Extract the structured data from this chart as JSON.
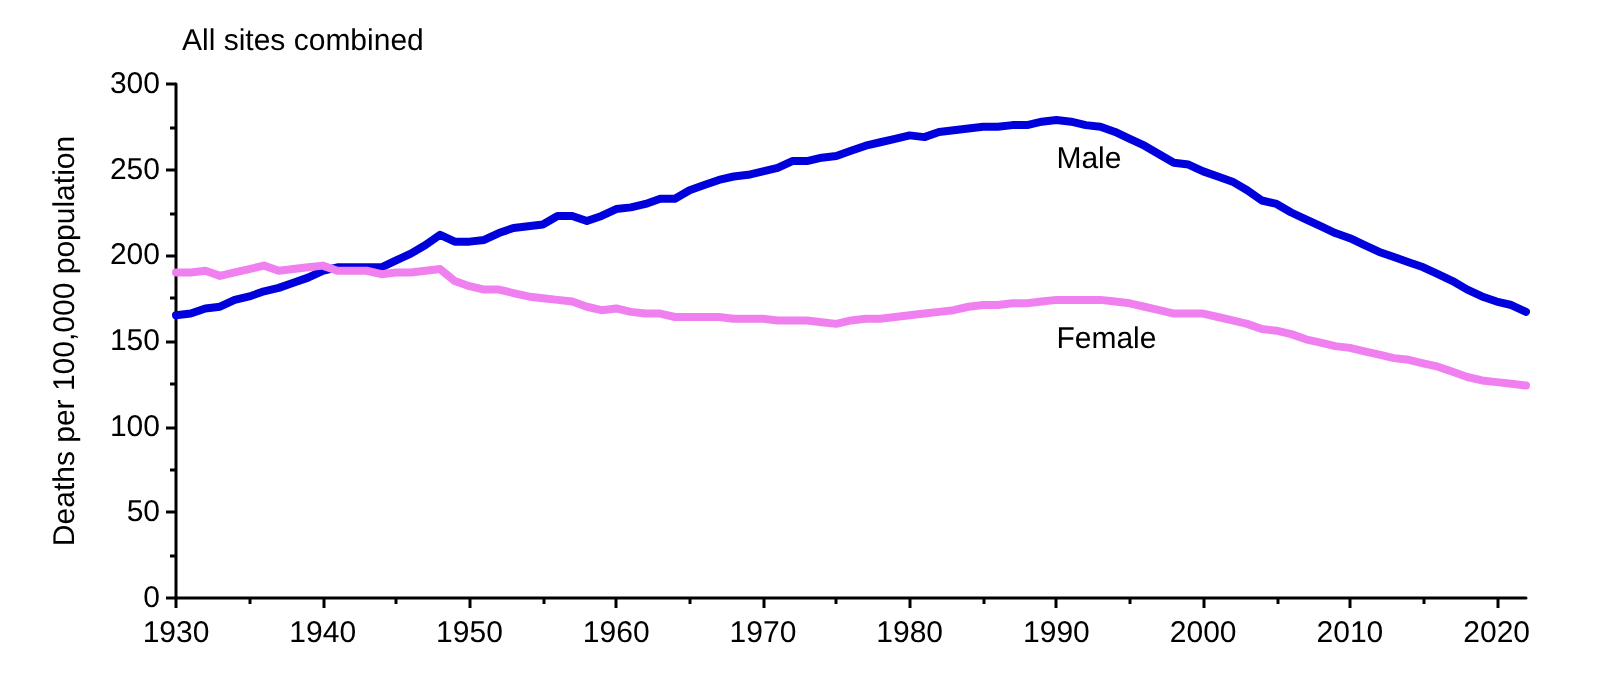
{
  "chart_data": {
    "type": "line",
    "title": "All sites combined",
    "ylabel": "Deaths per 100,000 population",
    "x": [
      1930,
      1931,
      1932,
      1933,
      1934,
      1935,
      1936,
      1937,
      1938,
      1939,
      1940,
      1941,
      1942,
      1943,
      1944,
      1945,
      1946,
      1947,
      1948,
      1949,
      1950,
      1951,
      1952,
      1953,
      1954,
      1955,
      1956,
      1957,
      1958,
      1959,
      1960,
      1961,
      1962,
      1963,
      1964,
      1965,
      1966,
      1967,
      1968,
      1969,
      1970,
      1971,
      1972,
      1973,
      1974,
      1975,
      1976,
      1977,
      1978,
      1979,
      1980,
      1981,
      1982,
      1983,
      1984,
      1985,
      1986,
      1987,
      1988,
      1989,
      1990,
      1991,
      1992,
      1993,
      1994,
      1995,
      1996,
      1997,
      1998,
      1999,
      2000,
      2001,
      2002,
      2003,
      2004,
      2005,
      2006,
      2007,
      2008,
      2009,
      2010,
      2011,
      2012,
      2013,
      2014,
      2015,
      2016,
      2017,
      2018,
      2019,
      2020,
      2021,
      2022
    ],
    "series": [
      {
        "name": "Male",
        "color": "#0000dd",
        "values": [
          165,
          166,
          169,
          170,
          174,
          176,
          179,
          181,
          184,
          187,
          191,
          193,
          193,
          193,
          193,
          197,
          201,
          206,
          212,
          208,
          208,
          209,
          213,
          216,
          217,
          218,
          223,
          223,
          220,
          223,
          227,
          228,
          230,
          233,
          233,
          238,
          241,
          244,
          246,
          247,
          249,
          251,
          255,
          255,
          257,
          258,
          261,
          264,
          266,
          268,
          270,
          269,
          272,
          273,
          274,
          275,
          275,
          276,
          276,
          278,
          279,
          278,
          276,
          275,
          272,
          268,
          264,
          259,
          254,
          253,
          249,
          246,
          243,
          238,
          232,
          230,
          225,
          221,
          217,
          213,
          210,
          206,
          202,
          199,
          196,
          193,
          189,
          185,
          180,
          176,
          173,
          171,
          167
        ]
      },
      {
        "name": "Female",
        "color": "#f080f0",
        "values": [
          190,
          190,
          191,
          188,
          190,
          192,
          194,
          191,
          192,
          193,
          194,
          191,
          191,
          191,
          189,
          190,
          190,
          191,
          192,
          185,
          182,
          180,
          180,
          178,
          176,
          175,
          174,
          173,
          170,
          168,
          169,
          167,
          166,
          166,
          164,
          164,
          164,
          164,
          163,
          163,
          163,
          162,
          162,
          162,
          161,
          160,
          162,
          163,
          163,
          164,
          165,
          166,
          167,
          168,
          170,
          171,
          171,
          172,
          172,
          173,
          174,
          174,
          174,
          174,
          173,
          172,
          170,
          168,
          166,
          166,
          166,
          164,
          162,
          160,
          157,
          156,
          154,
          151,
          149,
          147,
          146,
          144,
          142,
          140,
          139,
          137,
          135,
          132,
          129,
          127,
          126,
          125,
          124
        ]
      }
    ],
    "xlim": [
      1930,
      2022
    ],
    "xticks": [
      1930,
      1940,
      1950,
      1960,
      1970,
      1980,
      1990,
      2000,
      2010,
      2020
    ],
    "ylim": [
      0,
      300
    ],
    "yticks": [
      0,
      50,
      100,
      150,
      200,
      250,
      300
    ],
    "grid": false,
    "legend": false,
    "marker": "none",
    "line_style": "solid"
  }
}
